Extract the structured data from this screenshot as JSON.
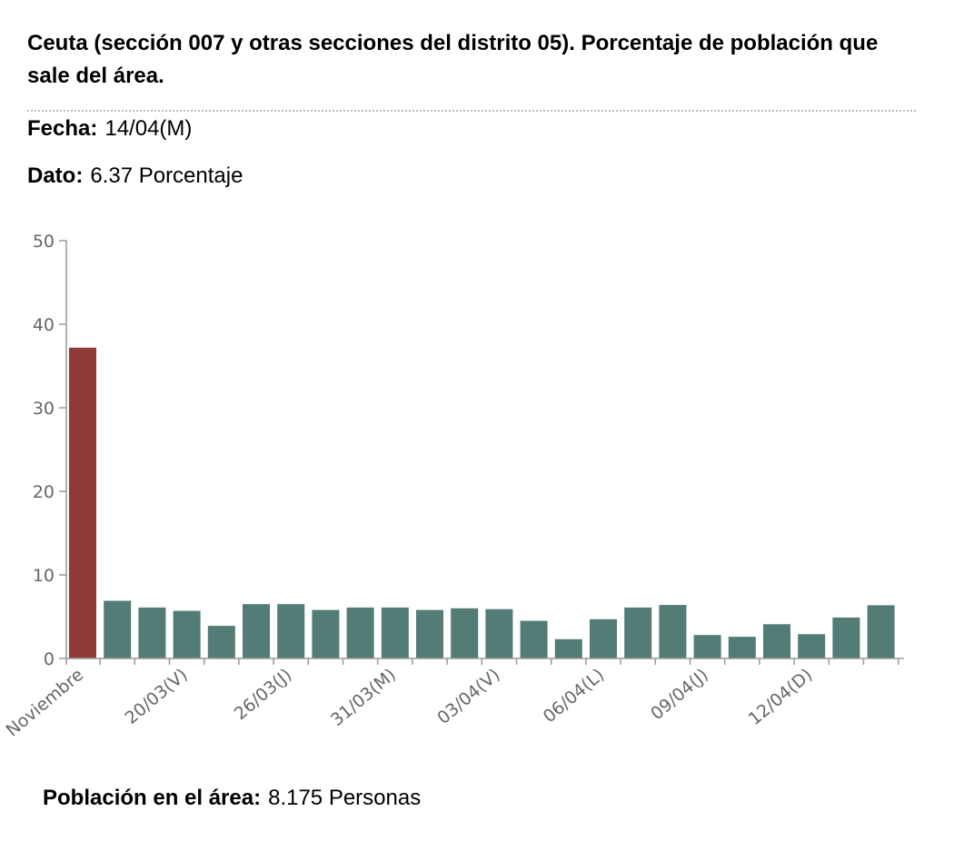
{
  "title": "Ceuta (sección 007 y otras secciones del distrito 05). Porcentaje de población que sale del área.",
  "fecha": {
    "label": "Fecha:",
    "value": "14/04(M)"
  },
  "dato": {
    "label": "Dato:",
    "value": "6.37 Porcentaje"
  },
  "poblacion": {
    "label": "Población en el área:",
    "value": "8.175 Personas"
  },
  "chart_data": {
    "type": "bar",
    "ylim": [
      0,
      50
    ],
    "yticks": [
      0,
      10,
      20,
      30,
      40,
      50
    ],
    "x_tick_labels": [
      {
        "index": 0,
        "label": "Noviembre"
      },
      {
        "index": 3,
        "label": "20/03(V)"
      },
      {
        "index": 6,
        "label": "26/03(J)"
      },
      {
        "index": 9,
        "label": "31/03(M)"
      },
      {
        "index": 12,
        "label": "03/04(V)"
      },
      {
        "index": 15,
        "label": "06/04(L)"
      },
      {
        "index": 18,
        "label": "09/04(J)"
      },
      {
        "index": 21,
        "label": "12/04(D)"
      }
    ],
    "values": [
      37.2,
      6.9,
      6.1,
      5.7,
      3.9,
      6.5,
      6.5,
      5.8,
      6.1,
      6.1,
      5.8,
      6.0,
      5.9,
      4.5,
      2.3,
      4.7,
      6.1,
      6.4,
      2.8,
      2.6,
      4.1,
      2.9,
      4.9,
      6.37
    ],
    "colors": {
      "highlight": "#8f3b3a",
      "bar": "#527c75",
      "axis": "#999999",
      "tick_text": "#666666"
    }
  }
}
